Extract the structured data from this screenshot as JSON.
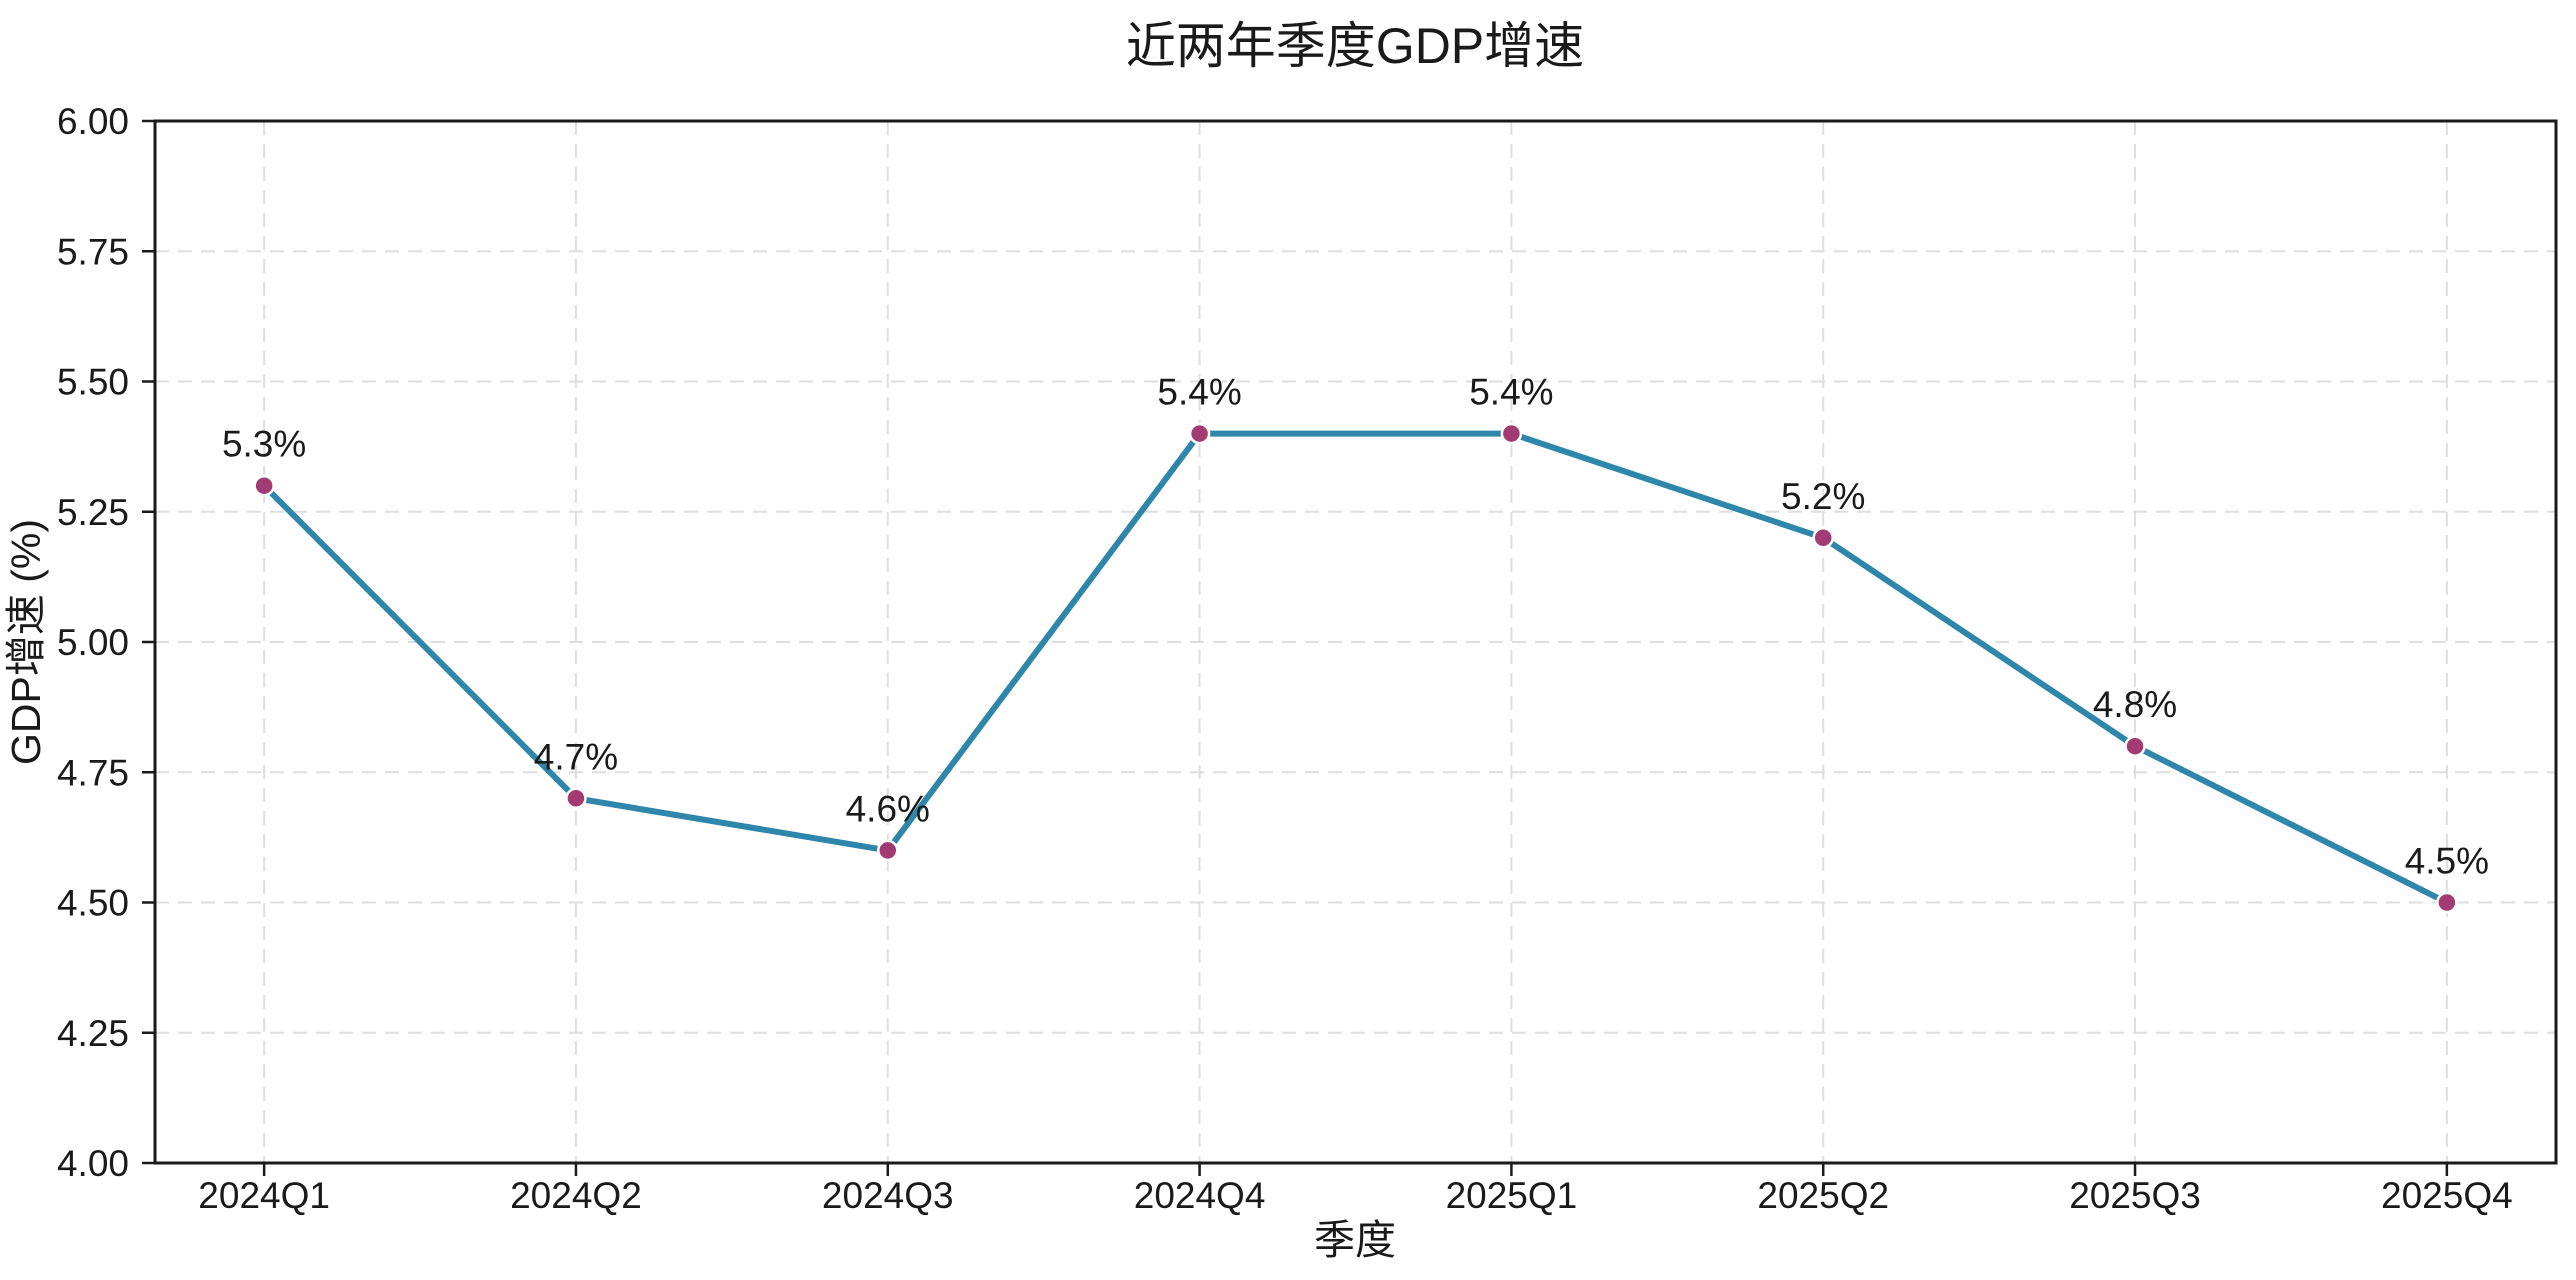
{
  "chart_data": {
    "type": "line",
    "title": "近两年季度GDP增速",
    "xlabel": "季度",
    "ylabel": "GDP增速 (%)",
    "categories": [
      "2024Q1",
      "2024Q2",
      "2024Q3",
      "2024Q4",
      "2025Q1",
      "2025Q2",
      "2025Q3",
      "2025Q4"
    ],
    "values": [
      5.3,
      4.7,
      4.6,
      5.4,
      5.4,
      5.2,
      4.8,
      4.5
    ],
    "point_labels": [
      "5.3%",
      "4.7%",
      "4.6%",
      "5.4%",
      "5.4%",
      "5.2%",
      "4.8%",
      "4.5%"
    ],
    "ylim": [
      4.0,
      6.0
    ],
    "ytick_labels": [
      "4.00",
      "4.25",
      "4.50",
      "4.75",
      "5.00",
      "5.25",
      "5.50",
      "5.75",
      "6.00"
    ],
    "grid": true,
    "grid_style": "dashed",
    "legend": "none",
    "colors": {
      "line": "#2E86AB",
      "marker": "#A23B72",
      "marker_edge": "#ffffff",
      "grid": "#dedede",
      "spine": "#1a1a1a",
      "text": "#1a1a1a",
      "background": "#ffffff"
    }
  }
}
